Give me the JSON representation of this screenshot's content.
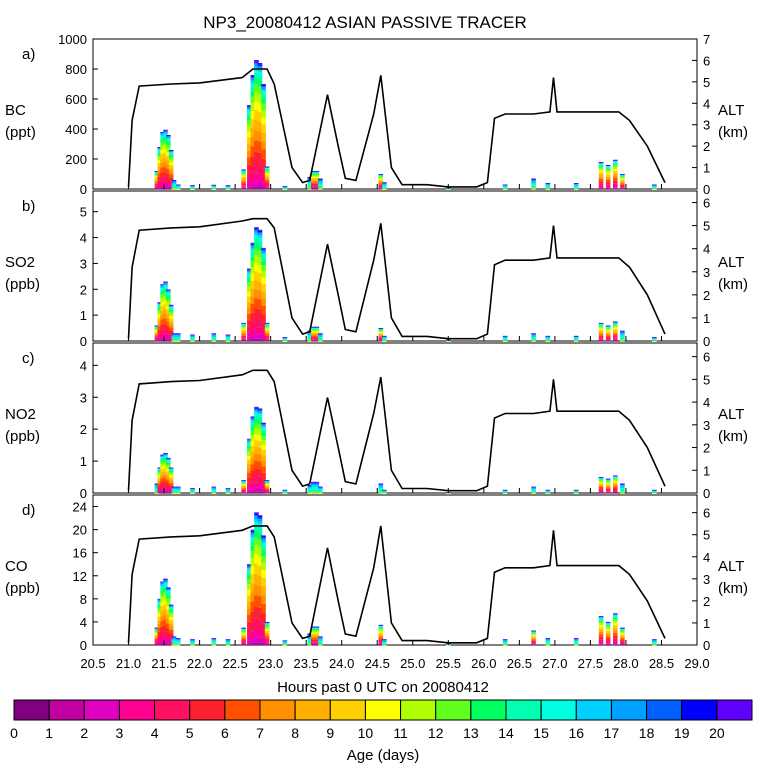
{
  "figure": {
    "title": "NP3_20080412 ASIAN PASSIVE TRACER",
    "xlabel": "Hours past 0 UTC on 20080412",
    "x_ticks": [
      "20.5",
      "21.0",
      "21.5",
      "22.0",
      "22.5",
      "23.0",
      "23.5",
      "24.0",
      "24.5",
      "25.0",
      "25.5",
      "26.0",
      "26.5",
      "27.0",
      "27.5",
      "28.0",
      "28.5",
      "29.0"
    ],
    "colorbar": {
      "label": "Age (days)",
      "ticks": [
        "0",
        "1",
        "2",
        "3",
        "4",
        "5",
        "6",
        "7",
        "8",
        "9",
        "10",
        "11",
        "12",
        "13",
        "14",
        "15",
        "16",
        "17",
        "18",
        "19",
        "20"
      ],
      "colors": [
        "#800080",
        "#c000a0",
        "#e000c0",
        "#ff0090",
        "#ff1060",
        "#ff2030",
        "#ff5000",
        "#ff9000",
        "#ffb000",
        "#ffd000",
        "#ffff00",
        "#b0ff00",
        "#60ff20",
        "#00ff60",
        "#00ffb0",
        "#00ffe0",
        "#00d0ff",
        "#00a0ff",
        "#0060ff",
        "#0000ff",
        "#6000ff"
      ]
    }
  },
  "chart_data": [
    {
      "type": "bar",
      "panel_label": "a)",
      "ylabel": "BC",
      "yunit": "(ppt)",
      "ylim": [
        0,
        1000
      ],
      "y_ticks": [
        "0",
        "200",
        "400",
        "600",
        "800",
        "1000"
      ],
      "y2label": "ALT",
      "y2unit": "(km)",
      "y2lim": [
        0,
        7
      ],
      "y2_ticks": [
        "0",
        "1",
        "2",
        "3",
        "4",
        "5",
        "6",
        "7"
      ],
      "xlim": [
        20.5,
        29.0
      ],
      "tracer_total": [
        [
          21.4,
          120
        ],
        [
          21.44,
          280
        ],
        [
          21.48,
          380
        ],
        [
          21.52,
          395
        ],
        [
          21.56,
          360
        ],
        [
          21.6,
          260
        ],
        [
          21.64,
          60
        ],
        [
          21.7,
          30
        ],
        [
          21.9,
          25
        ],
        [
          22.2,
          28
        ],
        [
          22.4,
          25
        ],
        [
          22.62,
          130
        ],
        [
          22.7,
          560
        ],
        [
          22.75,
          760
        ],
        [
          22.8,
          860
        ],
        [
          22.85,
          840
        ],
        [
          22.9,
          700
        ],
        [
          22.95,
          150
        ],
        [
          23.2,
          20
        ],
        [
          23.55,
          80
        ],
        [
          23.6,
          120
        ],
        [
          23.65,
          120
        ],
        [
          23.7,
          70
        ],
        [
          24.55,
          100
        ],
        [
          24.6,
          45
        ],
        [
          25.5,
          10
        ],
        [
          26.3,
          30
        ],
        [
          26.7,
          70
        ],
        [
          26.9,
          40
        ],
        [
          27.3,
          40
        ],
        [
          27.65,
          180
        ],
        [
          27.75,
          160
        ],
        [
          27.85,
          195
        ],
        [
          27.95,
          100
        ],
        [
          28.4,
          30
        ]
      ],
      "altitude_km": [
        [
          21.0,
          0.1
        ],
        [
          21.05,
          3.2
        ],
        [
          21.15,
          4.8
        ],
        [
          21.6,
          4.9
        ],
        [
          22.0,
          4.95
        ],
        [
          22.6,
          5.2
        ],
        [
          22.75,
          5.6
        ],
        [
          22.95,
          5.6
        ],
        [
          23.05,
          4.9
        ],
        [
          23.3,
          1.0
        ],
        [
          23.45,
          0.3
        ],
        [
          23.55,
          0.4
        ],
        [
          23.8,
          4.4
        ],
        [
          23.95,
          2.0
        ],
        [
          24.05,
          0.5
        ],
        [
          24.2,
          0.4
        ],
        [
          24.45,
          3.5
        ],
        [
          24.55,
          5.3
        ],
        [
          24.7,
          1.0
        ],
        [
          24.85,
          0.2
        ],
        [
          25.2,
          0.2
        ],
        [
          25.5,
          0.1
        ],
        [
          25.9,
          0.1
        ],
        [
          26.05,
          0.3
        ],
        [
          26.15,
          3.3
        ],
        [
          26.3,
          3.5
        ],
        [
          26.7,
          3.5
        ],
        [
          26.93,
          3.6
        ],
        [
          26.98,
          5.2
        ],
        [
          27.03,
          3.6
        ],
        [
          27.3,
          3.6
        ],
        [
          27.9,
          3.6
        ],
        [
          28.05,
          3.2
        ],
        [
          28.3,
          2.0
        ],
        [
          28.55,
          0.3
        ]
      ]
    },
    {
      "type": "bar",
      "panel_label": "b)",
      "ylabel": "SO2",
      "yunit": "(ppb)",
      "ylim": [
        0,
        5.8
      ],
      "y_ticks": [
        "0",
        "1",
        "2",
        "3",
        "4",
        "5"
      ],
      "y2label": "ALT",
      "y2unit": "(km)",
      "y2lim": [
        0,
        6.5
      ],
      "y2_ticks": [
        "0",
        "1",
        "2",
        "3",
        "4",
        "5",
        "6"
      ],
      "xlim": [
        20.5,
        29.0
      ],
      "tracer_total": [
        [
          21.4,
          0.6
        ],
        [
          21.44,
          1.5
        ],
        [
          21.48,
          2.2
        ],
        [
          21.52,
          2.3
        ],
        [
          21.56,
          2.0
        ],
        [
          21.6,
          1.4
        ],
        [
          21.64,
          0.3
        ],
        [
          21.7,
          0.3
        ],
        [
          21.9,
          0.25
        ],
        [
          22.2,
          0.3
        ],
        [
          22.4,
          0.25
        ],
        [
          22.62,
          0.7
        ],
        [
          22.7,
          2.8
        ],
        [
          22.75,
          3.8
        ],
        [
          22.8,
          4.4
        ],
        [
          22.85,
          4.3
        ],
        [
          22.9,
          3.6
        ],
        [
          22.95,
          0.7
        ],
        [
          23.2,
          0.15
        ],
        [
          23.55,
          0.4
        ],
        [
          23.6,
          0.55
        ],
        [
          23.65,
          0.55
        ],
        [
          23.7,
          0.3
        ],
        [
          24.55,
          0.5
        ],
        [
          24.6,
          0.2
        ],
        [
          25.5,
          0.05
        ],
        [
          26.3,
          0.2
        ],
        [
          26.7,
          0.3
        ],
        [
          26.9,
          0.2
        ],
        [
          27.3,
          0.2
        ],
        [
          27.65,
          0.7
        ],
        [
          27.75,
          0.6
        ],
        [
          27.85,
          0.75
        ],
        [
          27.95,
          0.4
        ],
        [
          28.4,
          0.15
        ]
      ],
      "altitude_km": [
        [
          21.0,
          0.1
        ],
        [
          21.05,
          3.2
        ],
        [
          21.15,
          4.8
        ],
        [
          21.6,
          4.9
        ],
        [
          22.0,
          4.95
        ],
        [
          22.6,
          5.2
        ],
        [
          22.75,
          5.3
        ],
        [
          22.95,
          5.3
        ],
        [
          23.05,
          4.9
        ],
        [
          23.3,
          1.0
        ],
        [
          23.45,
          0.3
        ],
        [
          23.55,
          0.4
        ],
        [
          23.8,
          4.2
        ],
        [
          23.95,
          2.0
        ],
        [
          24.05,
          0.5
        ],
        [
          24.2,
          0.4
        ],
        [
          24.45,
          3.5
        ],
        [
          24.55,
          5.1
        ],
        [
          24.7,
          1.0
        ],
        [
          24.85,
          0.2
        ],
        [
          25.2,
          0.2
        ],
        [
          25.5,
          0.1
        ],
        [
          25.9,
          0.1
        ],
        [
          26.05,
          0.3
        ],
        [
          26.15,
          3.3
        ],
        [
          26.3,
          3.5
        ],
        [
          26.7,
          3.5
        ],
        [
          26.93,
          3.6
        ],
        [
          26.98,
          5.0
        ],
        [
          27.03,
          3.6
        ],
        [
          27.3,
          3.6
        ],
        [
          27.9,
          3.6
        ],
        [
          28.05,
          3.2
        ],
        [
          28.3,
          2.0
        ],
        [
          28.55,
          0.3
        ]
      ]
    },
    {
      "type": "bar",
      "panel_label": "c)",
      "ylabel": "NO2",
      "yunit": "(ppb)",
      "ylim": [
        0,
        4.7
      ],
      "y_ticks": [
        "0",
        "1",
        "2",
        "3",
        "4"
      ],
      "y2label": "ALT",
      "y2unit": "(km)",
      "y2lim": [
        0,
        6.6
      ],
      "y2_ticks": [
        "0",
        "1",
        "2",
        "3",
        "4",
        "5",
        "6"
      ],
      "xlim": [
        20.5,
        29.0
      ],
      "tracer_total": [
        [
          21.4,
          0.3
        ],
        [
          21.44,
          0.8
        ],
        [
          21.48,
          1.2
        ],
        [
          21.52,
          1.25
        ],
        [
          21.56,
          1.1
        ],
        [
          21.6,
          0.8
        ],
        [
          21.64,
          0.2
        ],
        [
          21.7,
          0.2
        ],
        [
          21.9,
          0.15
        ],
        [
          22.2,
          0.2
        ],
        [
          22.4,
          0.15
        ],
        [
          22.62,
          0.4
        ],
        [
          22.7,
          1.7
        ],
        [
          22.75,
          2.4
        ],
        [
          22.8,
          2.7
        ],
        [
          22.85,
          2.65
        ],
        [
          22.9,
          2.2
        ],
        [
          22.95,
          0.4
        ],
        [
          23.2,
          0.1
        ],
        [
          23.55,
          0.25
        ],
        [
          23.6,
          0.35
        ],
        [
          23.65,
          0.35
        ],
        [
          23.7,
          0.2
        ],
        [
          24.55,
          0.3
        ],
        [
          24.6,
          0.1
        ],
        [
          25.5,
          0.03
        ],
        [
          26.3,
          0.1
        ],
        [
          26.7,
          0.2
        ],
        [
          26.9,
          0.1
        ],
        [
          27.3,
          0.1
        ],
        [
          27.65,
          0.5
        ],
        [
          27.75,
          0.45
        ],
        [
          27.85,
          0.55
        ],
        [
          27.95,
          0.3
        ],
        [
          28.4,
          0.1
        ]
      ],
      "altitude_km": [
        [
          21.0,
          0.1
        ],
        [
          21.05,
          3.2
        ],
        [
          21.15,
          4.8
        ],
        [
          21.6,
          4.9
        ],
        [
          22.0,
          4.95
        ],
        [
          22.6,
          5.2
        ],
        [
          22.75,
          5.4
        ],
        [
          22.95,
          5.4
        ],
        [
          23.05,
          4.9
        ],
        [
          23.3,
          1.0
        ],
        [
          23.45,
          0.3
        ],
        [
          23.55,
          0.4
        ],
        [
          23.8,
          4.2
        ],
        [
          23.95,
          2.0
        ],
        [
          24.05,
          0.5
        ],
        [
          24.2,
          0.4
        ],
        [
          24.45,
          3.5
        ],
        [
          24.55,
          5.1
        ],
        [
          24.7,
          1.0
        ],
        [
          24.85,
          0.2
        ],
        [
          25.2,
          0.2
        ],
        [
          25.5,
          0.1
        ],
        [
          25.9,
          0.1
        ],
        [
          26.05,
          0.3
        ],
        [
          26.15,
          3.3
        ],
        [
          26.3,
          3.5
        ],
        [
          26.7,
          3.5
        ],
        [
          26.93,
          3.6
        ],
        [
          26.98,
          5.0
        ],
        [
          27.03,
          3.6
        ],
        [
          27.3,
          3.6
        ],
        [
          27.9,
          3.6
        ],
        [
          28.05,
          3.2
        ],
        [
          28.3,
          2.0
        ],
        [
          28.55,
          0.3
        ]
      ]
    },
    {
      "type": "bar",
      "panel_label": "d)",
      "ylabel": "CO",
      "yunit": "(ppb)",
      "ylim": [
        0,
        26
      ],
      "y_ticks": [
        "0",
        "4",
        "8",
        "12",
        "16",
        "20",
        "24"
      ],
      "y2label": "ALT",
      "y2unit": "(km)",
      "y2lim": [
        0,
        6.8
      ],
      "y2_ticks": [
        "0",
        "1",
        "2",
        "3",
        "4",
        "5",
        "6"
      ],
      "xlim": [
        20.5,
        29.0
      ],
      "tracer_total": [
        [
          21.4,
          3
        ],
        [
          21.44,
          8
        ],
        [
          21.48,
          11
        ],
        [
          21.52,
          11.5
        ],
        [
          21.56,
          10
        ],
        [
          21.6,
          7
        ],
        [
          21.64,
          1.5
        ],
        [
          21.7,
          1.2
        ],
        [
          21.9,
          1.0
        ],
        [
          22.2,
          1.2
        ],
        [
          22.4,
          1.0
        ],
        [
          22.62,
          3
        ],
        [
          22.7,
          14
        ],
        [
          22.75,
          20
        ],
        [
          22.8,
          23
        ],
        [
          22.85,
          22.5
        ],
        [
          22.9,
          19
        ],
        [
          22.95,
          4
        ],
        [
          23.2,
          0.8
        ],
        [
          23.55,
          2
        ],
        [
          23.6,
          3.2
        ],
        [
          23.65,
          3.2
        ],
        [
          23.7,
          1.5
        ],
        [
          24.55,
          3.5
        ],
        [
          24.6,
          1
        ],
        [
          25.5,
          0.3
        ],
        [
          26.3,
          1
        ],
        [
          26.7,
          2.5
        ],
        [
          26.9,
          1.2
        ],
        [
          27.3,
          1.2
        ],
        [
          27.65,
          5
        ],
        [
          27.75,
          4
        ],
        [
          27.85,
          5.5
        ],
        [
          27.95,
          3
        ],
        [
          28.4,
          1
        ]
      ],
      "altitude_km": [
        [
          21.0,
          0.1
        ],
        [
          21.05,
          3.2
        ],
        [
          21.15,
          4.8
        ],
        [
          21.6,
          4.9
        ],
        [
          22.0,
          4.95
        ],
        [
          22.6,
          5.2
        ],
        [
          22.75,
          5.4
        ],
        [
          22.95,
          5.4
        ],
        [
          23.05,
          4.9
        ],
        [
          23.3,
          1.0
        ],
        [
          23.45,
          0.3
        ],
        [
          23.55,
          0.4
        ],
        [
          23.8,
          4.4
        ],
        [
          23.95,
          2.0
        ],
        [
          24.05,
          0.5
        ],
        [
          24.2,
          0.4
        ],
        [
          24.45,
          3.5
        ],
        [
          24.55,
          5.4
        ],
        [
          24.7,
          1.0
        ],
        [
          24.85,
          0.2
        ],
        [
          25.2,
          0.2
        ],
        [
          25.5,
          0.1
        ],
        [
          25.9,
          0.1
        ],
        [
          26.05,
          0.3
        ],
        [
          26.15,
          3.3
        ],
        [
          26.3,
          3.5
        ],
        [
          26.7,
          3.5
        ],
        [
          26.93,
          3.6
        ],
        [
          26.98,
          5.2
        ],
        [
          27.03,
          3.6
        ],
        [
          27.3,
          3.6
        ],
        [
          27.9,
          3.6
        ],
        [
          28.05,
          3.2
        ],
        [
          28.3,
          2.0
        ],
        [
          28.55,
          0.3
        ]
      ]
    }
  ]
}
